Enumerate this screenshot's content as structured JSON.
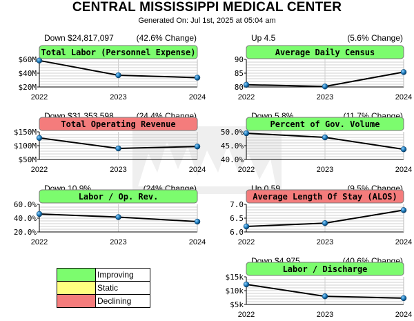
{
  "header": {
    "title": "CENTRAL MISSISSIPPI MEDICAL CENTER",
    "generated": "Generated On: Jul 1st, 2025 at 05:04 am"
  },
  "colors": {
    "improving": "#7cfc6e",
    "static": "#ffff80",
    "declining": "#f47c7c"
  },
  "legend": [
    {
      "label": "Improving",
      "status": "improving"
    },
    {
      "label": "Static",
      "status": "static"
    },
    {
      "label": "Declining",
      "status": "declining"
    }
  ],
  "chart_data": [
    {
      "type": "line",
      "title": "Total Labor (Personnel Expense)",
      "status": "improving",
      "change_left": "Down $24,817,097",
      "change_right": "(42.6% Change)",
      "x": [
        "2022",
        "2023",
        "2024"
      ],
      "values": [
        58.3,
        37.0,
        33.5
      ],
      "ylim": [
        20,
        60
      ],
      "yticks": [
        20,
        40,
        60
      ],
      "yticklabels": [
        "$20M",
        "$40M",
        "$60M"
      ]
    },
    {
      "type": "line",
      "title": "Average Daily Census",
      "status": "improving",
      "change_left": "Up 4.5",
      "change_right": "(5.6% Change)",
      "x": [
        "2022",
        "2023",
        "2024"
      ],
      "values": [
        80.8,
        80.2,
        85.4
      ],
      "ylim": [
        80,
        90
      ],
      "yticks": [
        80,
        85,
        90
      ],
      "yticklabels": [
        "80",
        "85",
        "90"
      ]
    },
    {
      "type": "line",
      "title": "Total Operating Revenue",
      "status": "declining",
      "change_left": "Down $31,353,598",
      "change_right": "(24.4% Change)",
      "x": [
        "2022",
        "2023",
        "2024"
      ],
      "values": [
        128,
        90,
        97
      ],
      "ylim": [
        50,
        150
      ],
      "yticks": [
        50,
        100,
        150
      ],
      "yticklabels": [
        "$50M",
        "$100M",
        "$150M"
      ]
    },
    {
      "type": "line",
      "title": "Percent of Gov. Volume",
      "status": "improving",
      "change_left": "Down 5.8%",
      "change_right": "(11.7% Change)",
      "x": [
        "2022",
        "2023",
        "2024"
      ],
      "values": [
        49.5,
        48.0,
        43.7
      ],
      "ylim": [
        40,
        50
      ],
      "yticks": [
        40,
        45,
        50
      ],
      "yticklabels": [
        "40.0%",
        "45.0%",
        "50.0%"
      ]
    },
    {
      "type": "line",
      "title": "Labor / Op. Rev.",
      "status": "improving",
      "change_left": "Down 10.9%",
      "change_right": "(24% Change)",
      "x": [
        "2022",
        "2023",
        "2024"
      ],
      "values": [
        46,
        41.5,
        35
      ],
      "ylim": [
        20,
        60
      ],
      "yticks": [
        20,
        40,
        60
      ],
      "yticklabels": [
        "20.0%",
        "40.0%",
        "60.0%"
      ]
    },
    {
      "type": "line",
      "title": "Average Length Of Stay (ALOS)",
      "status": "declining",
      "change_left": "Up 0.59",
      "change_right": "(9.5% Change)",
      "x": [
        "2022",
        "2023",
        "2024"
      ],
      "values": [
        6.2,
        6.32,
        6.79
      ],
      "ylim": [
        6,
        7
      ],
      "yticks": [
        6,
        6.5,
        7
      ],
      "yticklabels": [
        "6.0",
        "6.5",
        "7.0"
      ]
    },
    {
      "type": "line",
      "title": "Labor / Discharge",
      "status": "improving",
      "change_left": "Down $4,975",
      "change_right": "(40.6% Change)",
      "x": [
        "2022",
        "2023",
        "2024"
      ],
      "values": [
        12250,
        7950,
        7280
      ],
      "ylim": [
        5000,
        15000
      ],
      "yticks": [
        5000,
        10000,
        15000
      ],
      "yticklabels": [
        "$5k",
        "$10k",
        "$15k"
      ]
    }
  ]
}
